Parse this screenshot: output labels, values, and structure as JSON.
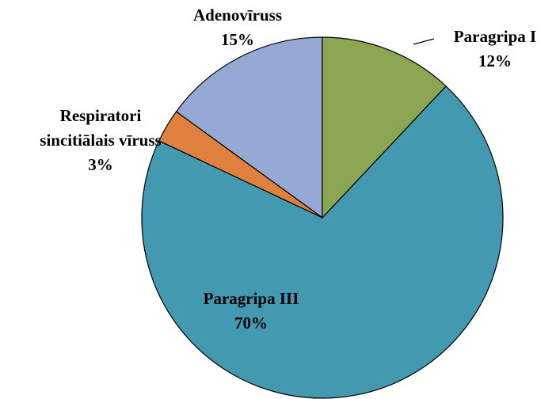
{
  "chart_data": {
    "type": "pie",
    "categories": [
      "Paragripa I",
      "Paragripa III",
      "Respiratori sincitiālais vīruss",
      "Adenovīruss"
    ],
    "values": [
      12,
      70,
      3,
      15
    ],
    "value_labels": [
      "12%",
      "70%",
      "3%",
      "15%"
    ],
    "colors": [
      "#8aa652",
      "#4299b0",
      "#e0803f",
      "#94a9d3"
    ]
  }
}
